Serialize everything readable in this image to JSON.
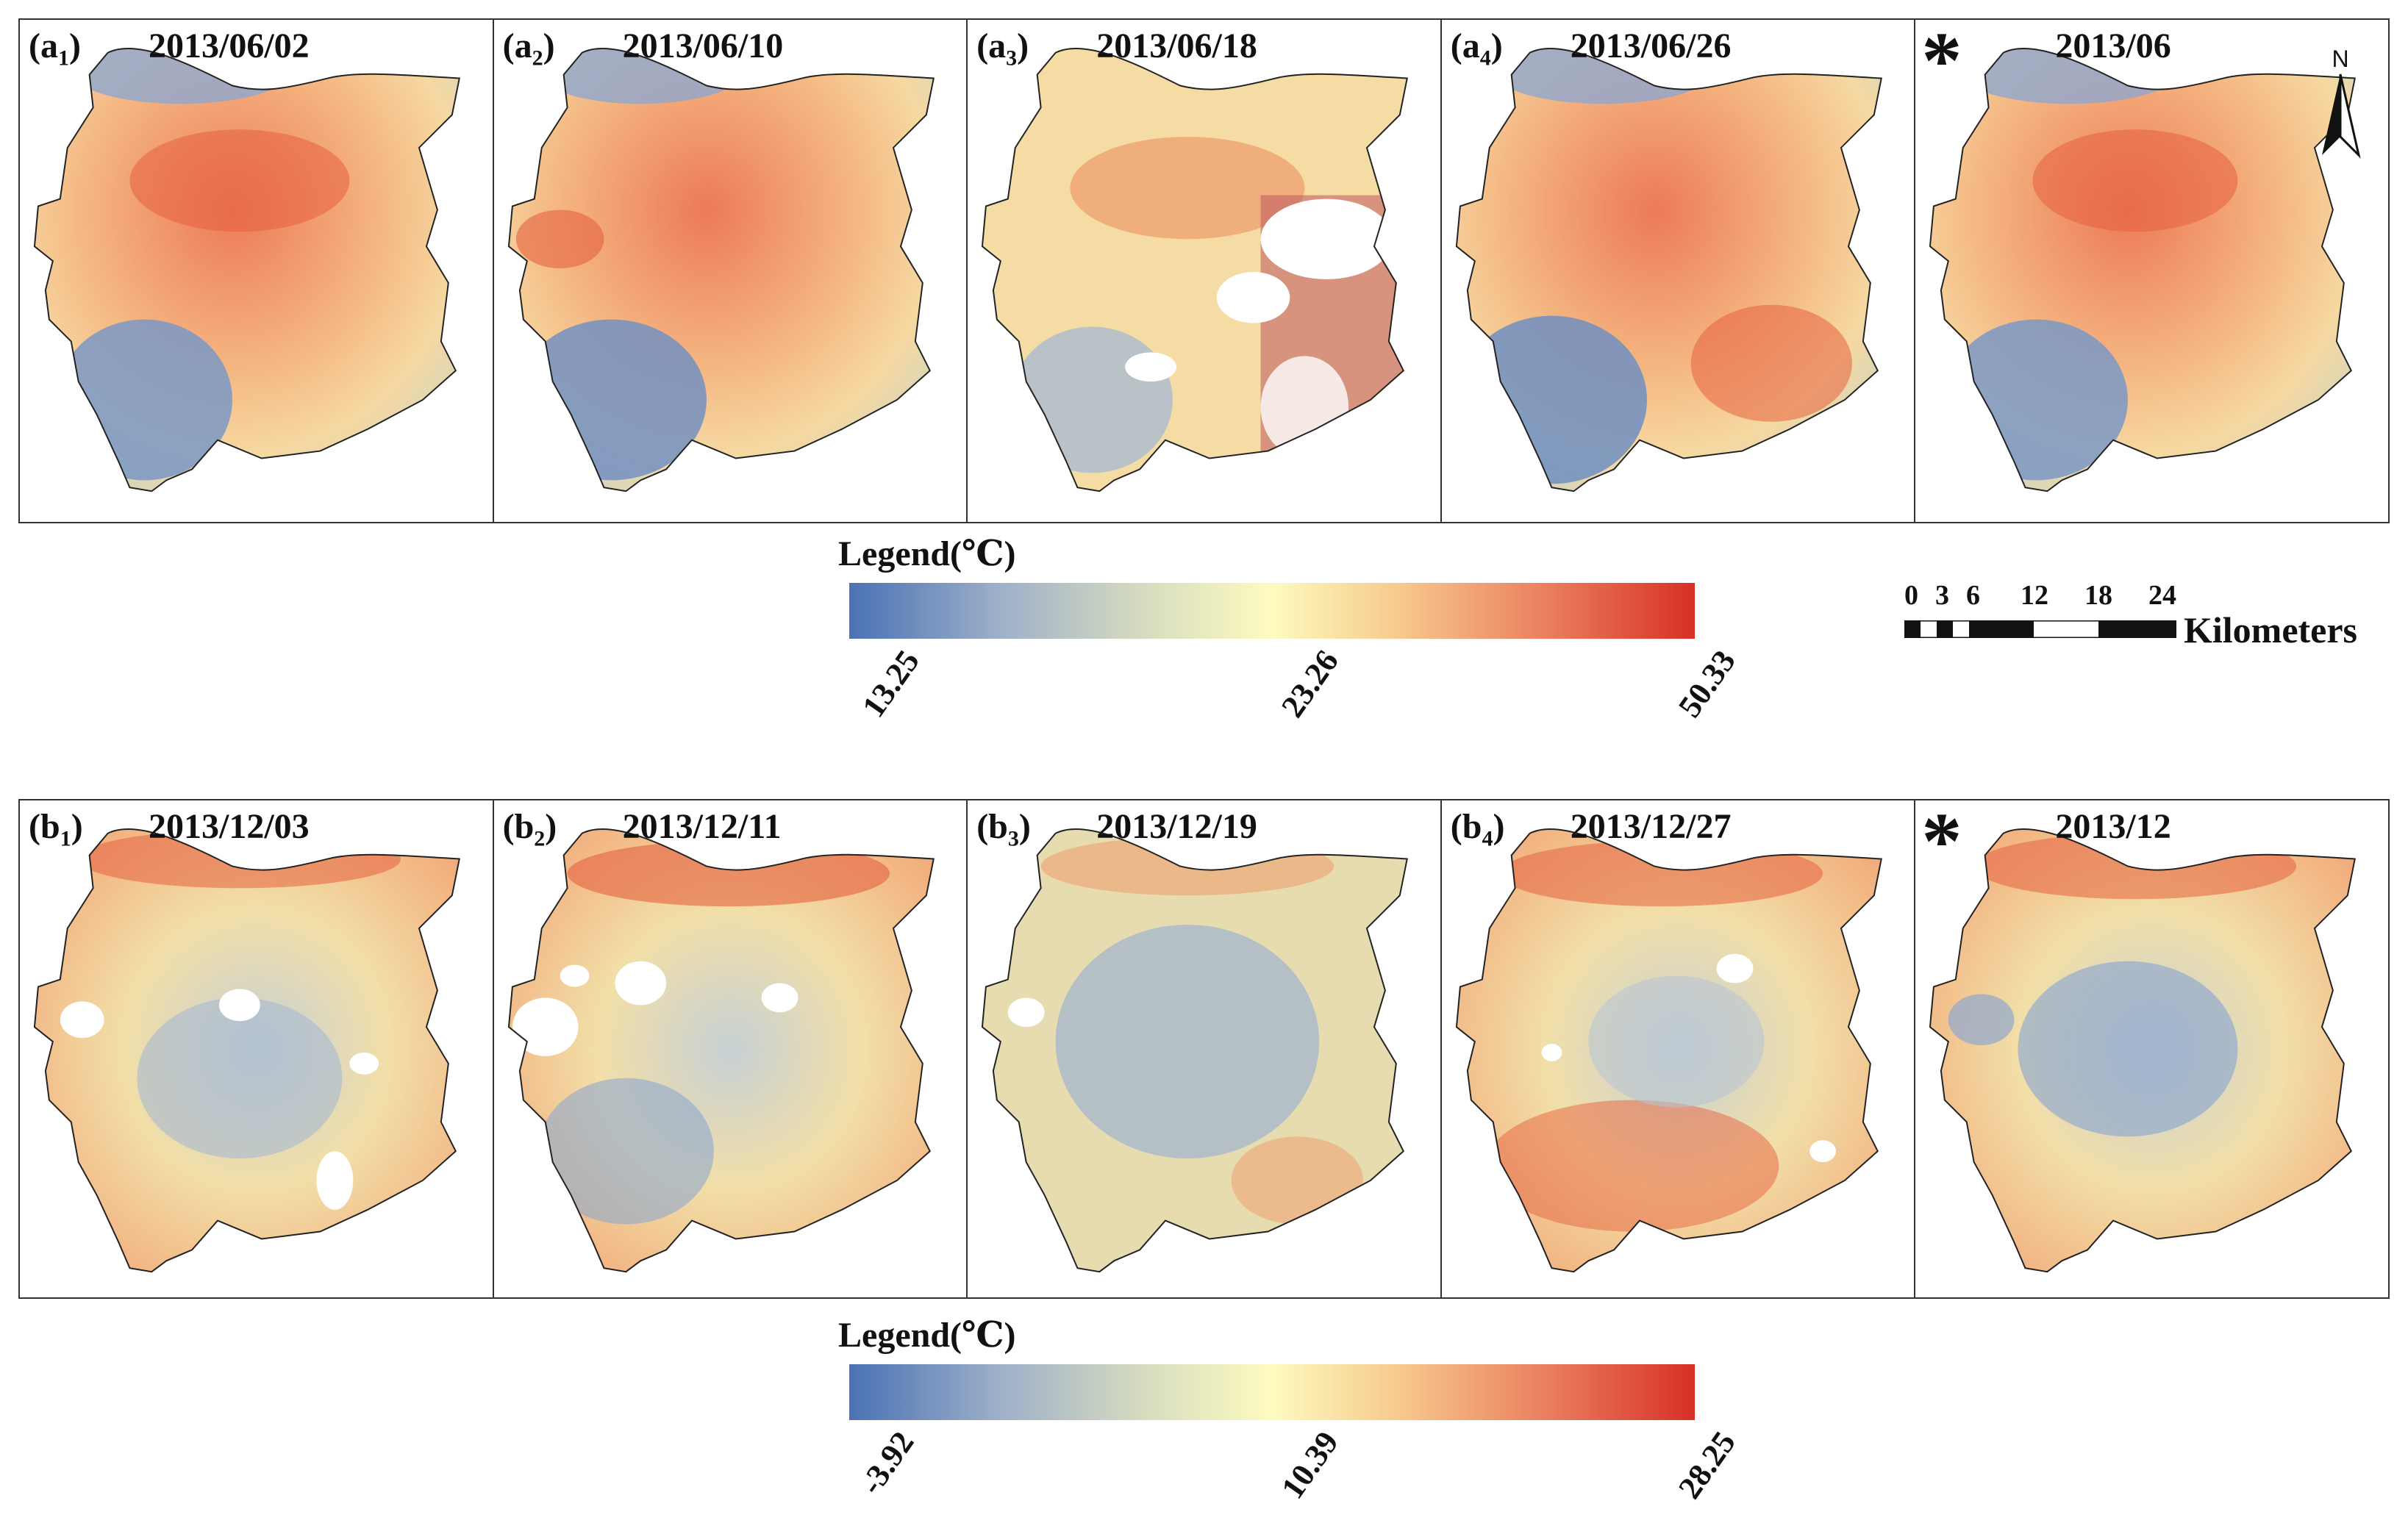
{
  "figure": {
    "row_a": {
      "panels": [
        {
          "label_main": "(a",
          "label_sub": "1",
          "label_end": ")",
          "date": "2013/06/02"
        },
        {
          "label_main": "(a",
          "label_sub": "2",
          "label_end": ")",
          "date": "2013/06/10"
        },
        {
          "label_main": "(a",
          "label_sub": "3",
          "label_end": ")",
          "date": "2013/06/18"
        },
        {
          "label_main": "(a",
          "label_sub": "4",
          "label_end": ")",
          "date": "2013/06/26"
        },
        {
          "star": "*",
          "date": "2013/06"
        }
      ],
      "legend": {
        "title": "Legend(℃)",
        "min": "13.25",
        "mid": "23.26",
        "max": "50.33"
      }
    },
    "row_b": {
      "panels": [
        {
          "label_main": "(b",
          "label_sub": "1",
          "label_end": ")",
          "date": "2013/12/03"
        },
        {
          "label_main": "(b",
          "label_sub": "2",
          "label_end": ")",
          "date": "2013/12/11"
        },
        {
          "label_main": "(b",
          "label_sub": "3",
          "label_end": ")",
          "date": "2013/12/19"
        },
        {
          "label_main": "(b",
          "label_sub": "4",
          "label_end": ")",
          "date": "2013/12/27"
        },
        {
          "star": "*",
          "date": "2013/12"
        }
      ],
      "legend": {
        "title": "Legend(℃)",
        "min": "-3.92",
        "mid": "10.39",
        "max": "28.25"
      }
    },
    "north_arrow": "N",
    "scale_bar": {
      "ticks": [
        "0",
        "3",
        "6",
        "12",
        "18",
        "24"
      ],
      "unit": "Kilometers"
    },
    "colors": {
      "cold": "#4a72b4",
      "neutral": "#fdfbbf",
      "hot": "#d73027"
    }
  }
}
